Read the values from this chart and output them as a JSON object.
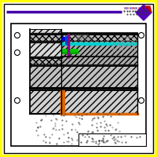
{
  "bg_color": "#ffffff",
  "outer_border_color": "#ffff00",
  "inner_border_color": "#000000",
  "header_line_color": "#4400aa",
  "diamond_color": "#5500bb",
  "diamond_red": "#cc0000",
  "wall_hatch_color": "#cccccc",
  "slab_color": "#bbbbbb",
  "black_color": "#000000",
  "green_color": "#00cc00",
  "blue_color": "#0000ff",
  "purple_color": "#880088",
  "cyan_color": "#00cccc",
  "orange_color": "#dd6600",
  "gray_color": "#888888",
  "darkgray_color": "#444444",
  "note_dot_color": "#555555"
}
